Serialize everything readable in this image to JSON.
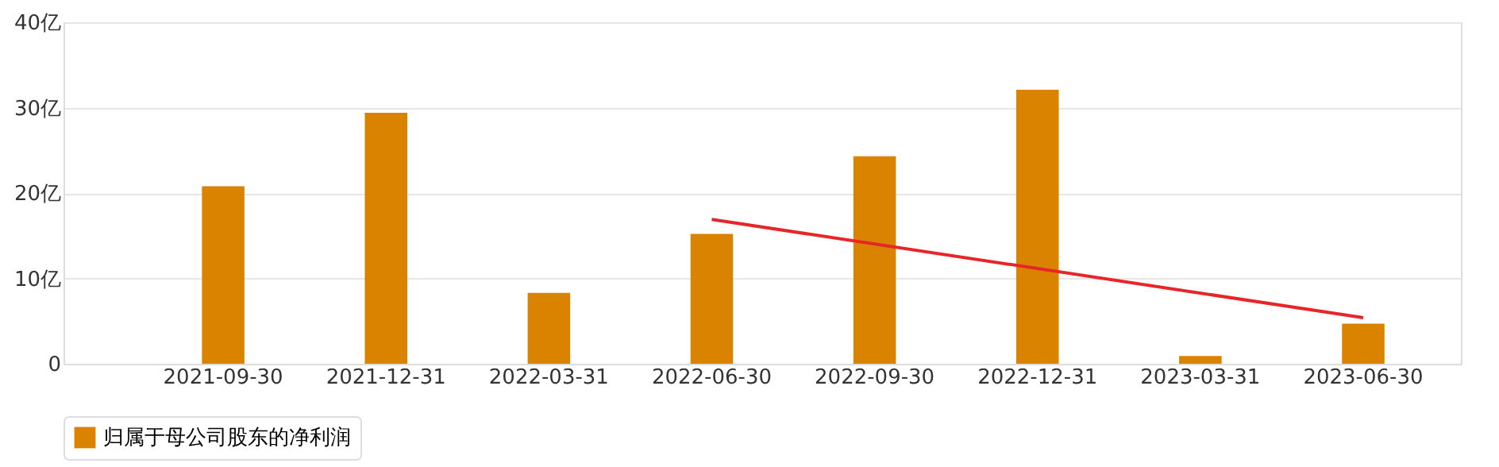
{
  "chart_data": {
    "type": "bar",
    "categories": [
      "2021-09-30",
      "2021-12-31",
      "2022-03-31",
      "2022-06-30",
      "2022-09-30",
      "2022-12-31",
      "2023-03-31",
      "2023-06-30"
    ],
    "series": [
      {
        "name": "归属于母公司股东的净利润",
        "color": "#d98300",
        "values": [
          20.8,
          29.4,
          8.3,
          15.2,
          24.3,
          32.1,
          0.9,
          4.7
        ]
      },
      {
        "type": "line",
        "color": "#e8262a",
        "values": [
          null,
          null,
          null,
          16.9,
          null,
          null,
          null,
          5.4
        ]
      }
    ],
    "ylim": [
      0,
      40
    ],
    "yticks": [
      0,
      {
        "value": 10,
        "label": "10亿"
      },
      {
        "value": 20,
        "label": "20亿"
      },
      {
        "value": 30,
        "label": "30亿"
      },
      {
        "value": 40,
        "label": "40亿"
      }
    ],
    "grid": "y",
    "legend": "bottom"
  }
}
